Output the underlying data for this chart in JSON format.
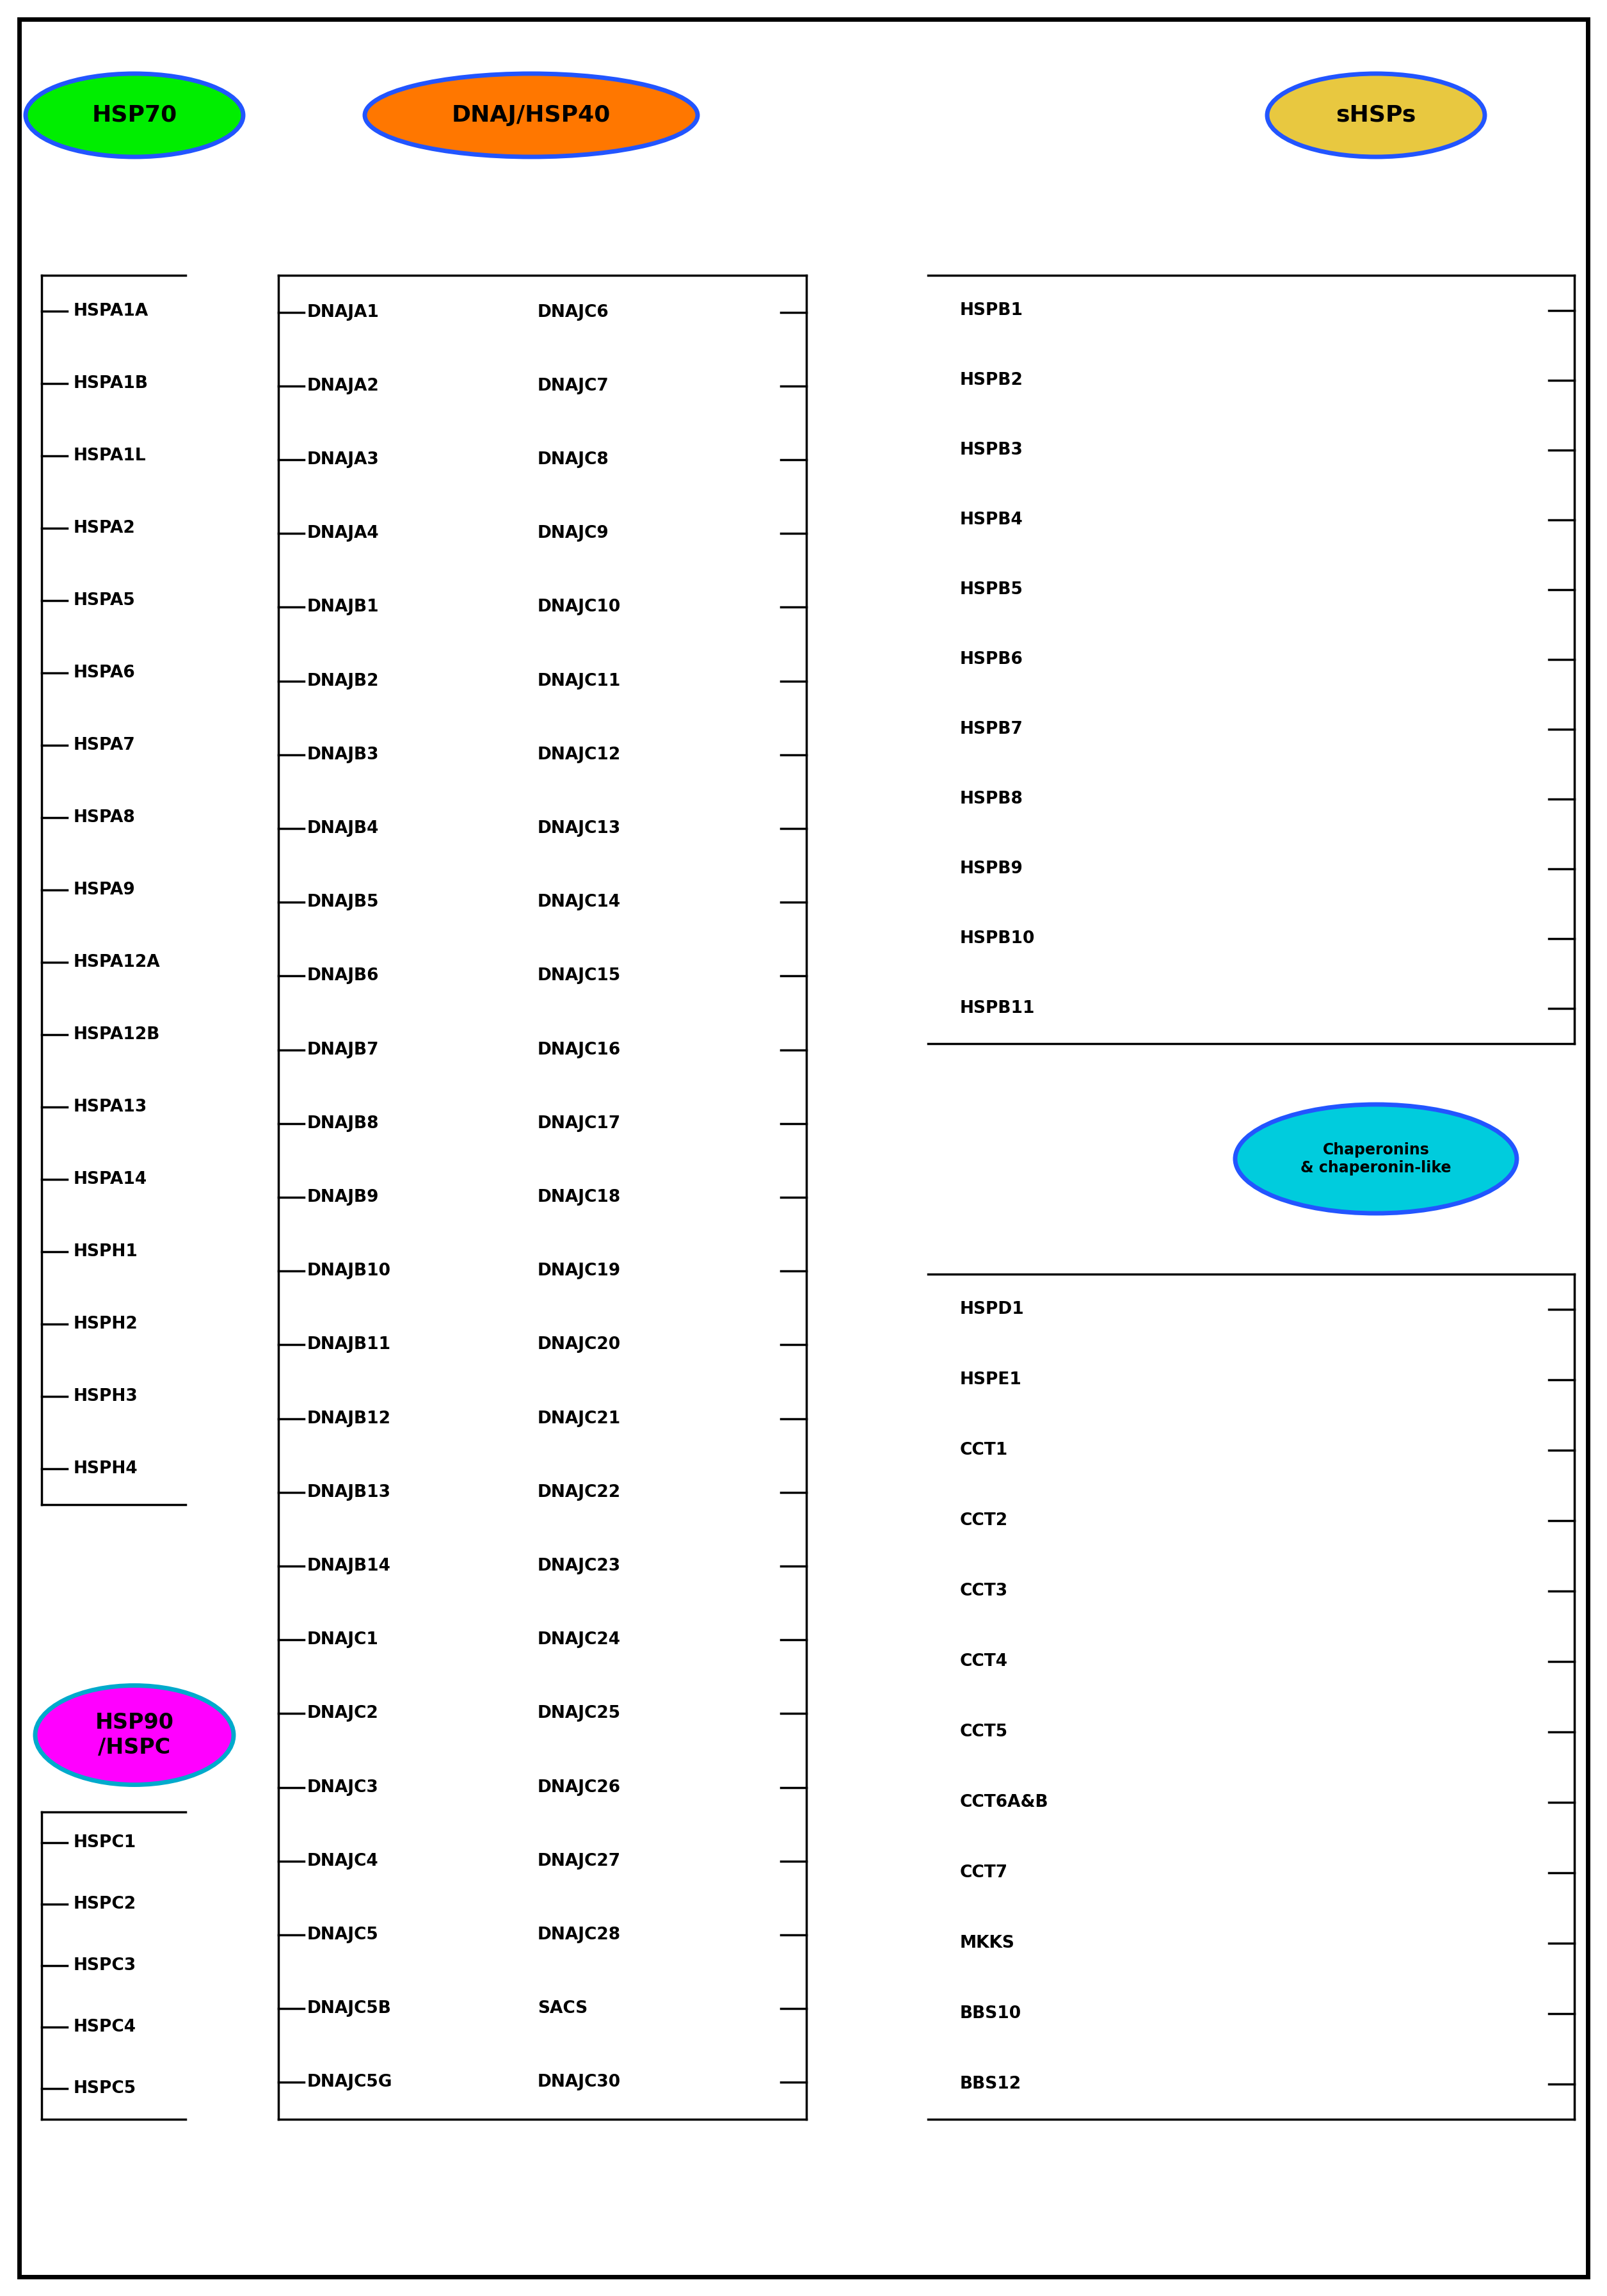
{
  "hsp70_items": [
    "HSPA1A",
    "HSPA1B",
    "HSPA1L",
    "HSPA2",
    "HSPA5",
    "HSPA6",
    "HSPA7",
    "HSPA8",
    "HSPA9",
    "HSPA12A",
    "HSPA12B",
    "HSPA13",
    "HSPA14",
    "HSPH1",
    "HSPH2",
    "HSPH3",
    "HSPH4"
  ],
  "dnaj_left_items": [
    "DNAJA1",
    "DNAJA2",
    "DNAJA3",
    "DNAJA4",
    "DNAJB1",
    "DNAJB2",
    "DNAJB3",
    "DNAJB4",
    "DNAJB5",
    "DNAJB6",
    "DNAJB7",
    "DNAJB8",
    "DNAJB9",
    "DNAJB10",
    "DNAJB11",
    "DNAJB12",
    "DNAJB13",
    "DNAJB14",
    "DNAJC1",
    "DNAJC2",
    "DNAJC3",
    "DNAJC4",
    "DNAJC5",
    "DNAJC5B",
    "DNAJC5G"
  ],
  "dnaj_right_items": [
    "DNAJC6",
    "DNAJC7",
    "DNAJC8",
    "DNAJC9",
    "DNAJC10",
    "DNAJC11",
    "DNAJC12",
    "DNAJC13",
    "DNAJC14",
    "DNAJC15",
    "DNAJC16",
    "DNAJC17",
    "DNAJC18",
    "DNAJC19",
    "DNAJC20",
    "DNAJC21",
    "DNAJC22",
    "DNAJC23",
    "DNAJC24",
    "DNAJC25",
    "DNAJC26",
    "DNAJC27",
    "DNAJC28",
    "SACS",
    "DNAJC30"
  ],
  "shsps_items": [
    "HSPB1",
    "HSPB2",
    "HSPB3",
    "HSPB4",
    "HSPB5",
    "HSPB6",
    "HSPB7",
    "HSPB8",
    "HSPB9",
    "HSPB10",
    "HSPB11"
  ],
  "chaperonins_items": [
    "HSPD1",
    "HSPE1",
    "CCT1",
    "CCT2",
    "CCT3",
    "CCT4",
    "CCT5",
    "CCT6A&B",
    "CCT7",
    "MKKS",
    "BBS10",
    "BBS12"
  ],
  "hsp90_items": [
    "HSPC1",
    "HSPC2",
    "HSPC3",
    "HSPC4",
    "HSPC5"
  ],
  "hsp70_color": "#00ee00",
  "hsp70_border": "#2255ff",
  "dnaj_color": "#ff7700",
  "dnaj_border": "#2255ff",
  "shsps_color": "#e8c840",
  "shsps_border": "#2255ff",
  "chaperonins_color": "#00ccdd",
  "chaperonins_border": "#2255ff",
  "hsp90_color": "#ff00ff",
  "hsp90_border": "#00aacc",
  "bg_color": "#ffffff",
  "text_color": "#000000"
}
